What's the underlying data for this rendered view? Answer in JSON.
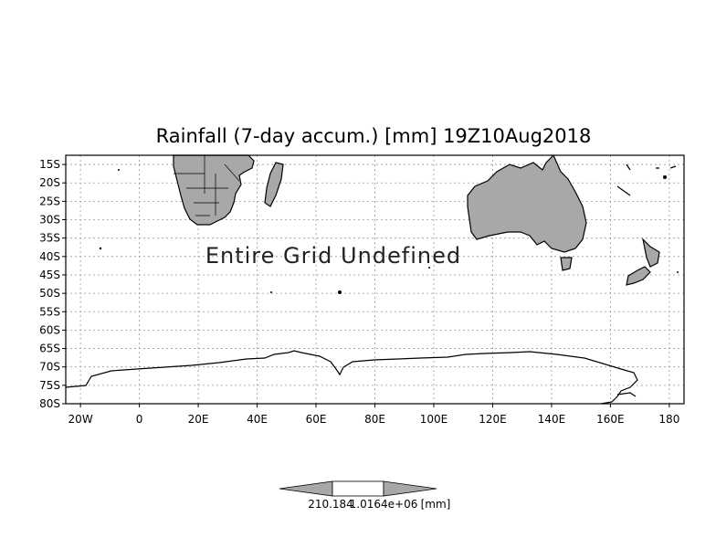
{
  "map": {
    "title": "Rainfall (7-day accum.) [mm] 19Z10Aug2018",
    "overlay_text": "Entire Grid Undefined",
    "lon_range": [
      -25,
      185
    ],
    "lat_range": [
      -80,
      -12.5
    ],
    "lat_ticks": [
      {
        "value": -15,
        "label": "15S"
      },
      {
        "value": -20,
        "label": "20S"
      },
      {
        "value": -25,
        "label": "25S"
      },
      {
        "value": -30,
        "label": "30S"
      },
      {
        "value": -35,
        "label": "35S"
      },
      {
        "value": -40,
        "label": "40S"
      },
      {
        "value": -45,
        "label": "45S"
      },
      {
        "value": -50,
        "label": "50S"
      },
      {
        "value": -55,
        "label": "55S"
      },
      {
        "value": -60,
        "label": "60S"
      },
      {
        "value": -65,
        "label": "65S"
      },
      {
        "value": -70,
        "label": "70S"
      },
      {
        "value": -75,
        "label": "75S"
      },
      {
        "value": -80,
        "label": "80S"
      }
    ],
    "lon_ticks": [
      {
        "value": -20,
        "label": "20W"
      },
      {
        "value": 0,
        "label": "0"
      },
      {
        "value": 20,
        "label": "20E"
      },
      {
        "value": 40,
        "label": "40E"
      },
      {
        "value": 60,
        "label": "60E"
      },
      {
        "value": 80,
        "label": "80E"
      },
      {
        "value": 100,
        "label": "100E"
      },
      {
        "value": 120,
        "label": "120E"
      },
      {
        "value": 140,
        "label": "140E"
      },
      {
        "value": 160,
        "label": "160E"
      },
      {
        "value": 180,
        "label": "180"
      }
    ],
    "colors": {
      "land": "#a8a8a8",
      "coast": "#000000",
      "grid": "#999999",
      "colorbar_arrow": "#a8a8a8"
    }
  },
  "colorbar": {
    "label_left": "210.184",
    "label_right": "1.0164e+06",
    "units": "[mm]"
  }
}
